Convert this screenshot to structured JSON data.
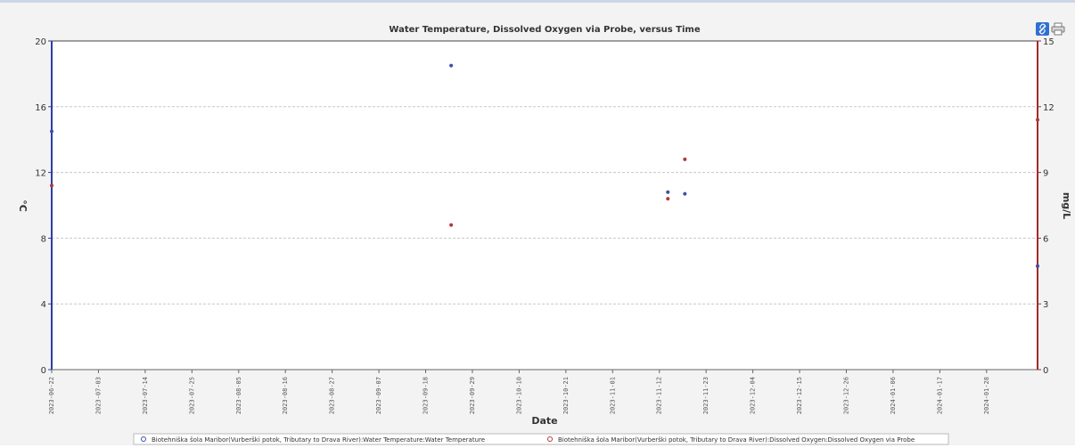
{
  "chart_data": {
    "type": "scatter",
    "title": "Water Temperature, Dissolved Oxygen via Probe, versus Time",
    "xlabel": "Date",
    "ylabel_left": "°C",
    "ylabel_right": "mg/L",
    "y_left_lim": [
      0,
      20
    ],
    "y_left_ticks": [
      "0",
      "4",
      "8",
      "12",
      "16",
      "20"
    ],
    "y_right_lim": [
      0,
      15
    ],
    "y_right_ticks": [
      "0",
      "3",
      "6",
      "9",
      "12",
      "15"
    ],
    "x_range": [
      "2023-06-22",
      "2024-02-09"
    ],
    "x_ticks": [
      "2023-06-22",
      "2023-07-03",
      "2023-07-14",
      "2023-07-25",
      "2023-08-05",
      "2023-08-16",
      "2023-08-27",
      "2023-09-07",
      "2023-09-18",
      "2023-09-29",
      "2023-10-10",
      "2023-10-21",
      "2023-11-01",
      "2023-11-12",
      "2023-11-23",
      "2023-12-04",
      "2023-12-15",
      "2023-12-26",
      "2024-01-06",
      "2024-01-17",
      "2024-01-28"
    ],
    "grid": true,
    "legend_position": "bottom",
    "series": [
      {
        "name": "Biotehniška šola Maribor(Vurberški potok, Tributary to Drava River):Water Temperature:Water Temperature",
        "axis": "left",
        "color": "#3a4fb0",
        "points": [
          {
            "x": "2023-06-22",
            "y": 14.5
          },
          {
            "x": "2023-09-24",
            "y": 18.5
          },
          {
            "x": "2023-11-14",
            "y": 10.8
          },
          {
            "x": "2023-11-18",
            "y": 10.7
          },
          {
            "x": "2024-02-09",
            "y": 6.3
          }
        ]
      },
      {
        "name": "Biotehniška šola Maribor(Vurberški potok, Tributary to Drava River):Dissolved Oxygen:Dissolved Oxygen via Probe",
        "axis": "right",
        "color": "#b03a3a",
        "points": [
          {
            "x": "2023-06-22",
            "y": 8.4
          },
          {
            "x": "2023-09-24",
            "y": 6.6
          },
          {
            "x": "2023-11-14",
            "y": 7.8
          },
          {
            "x": "2023-11-18",
            "y": 9.6
          },
          {
            "x": "2024-02-09",
            "y": 11.4
          }
        ]
      }
    ]
  },
  "toolbar": {
    "link_icon": "link-icon",
    "print_icon": "print-icon",
    "accent": "#2f6fd1"
  }
}
